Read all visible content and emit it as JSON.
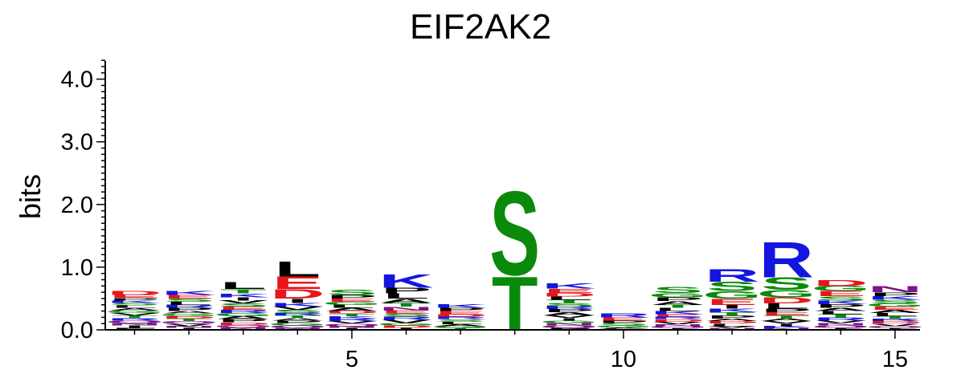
{
  "chart_data": {
    "type": "sequence-logo",
    "title": "EIF2AK2",
    "ylabel": "bits",
    "xlabel": "",
    "ylim": [
      0,
      4.3
    ],
    "y_ticks": [
      "0.0",
      "1.0",
      "2.0",
      "3.0",
      "4.0"
    ],
    "x_ticks": [
      "5",
      "10",
      "15"
    ],
    "colors": {
      "red": "#e8161c",
      "blue": "#1515e0",
      "green": "#0a8a0a",
      "black": "#000000",
      "purple": "#7a1582"
    },
    "positions": [
      {
        "pos": 1,
        "letters": [
          {
            "l": "D",
            "h": 0.07,
            "c": "red"
          },
          {
            "l": "E",
            "h": 0.05,
            "c": "red"
          },
          {
            "l": "P",
            "h": 0.04,
            "c": "black"
          },
          {
            "l": "K",
            "h": 0.04,
            "c": "blue"
          },
          {
            "l": "S",
            "h": 0.04,
            "c": "green"
          },
          {
            "l": "L",
            "h": 0.04,
            "c": "black"
          },
          {
            "l": "A",
            "h": 0.04,
            "c": "black"
          },
          {
            "l": "G",
            "h": 0.04,
            "c": "green"
          },
          {
            "l": "V",
            "h": 0.04,
            "c": "black"
          },
          {
            "l": "T",
            "h": 0.04,
            "c": "green"
          },
          {
            "l": "R",
            "h": 0.04,
            "c": "blue"
          },
          {
            "l": "Q",
            "h": 0.04,
            "c": "purple"
          },
          {
            "l": "N",
            "h": 0.04,
            "c": "purple"
          },
          {
            "l": "I",
            "h": 0.04,
            "c": "black"
          },
          {
            "l": "F",
            "h": 0.03,
            "c": "black"
          }
        ]
      },
      {
        "pos": 2,
        "letters": [
          {
            "l": "K",
            "h": 0.07,
            "c": "blue"
          },
          {
            "l": "E",
            "h": 0.06,
            "c": "red"
          },
          {
            "l": "S",
            "h": 0.05,
            "c": "green"
          },
          {
            "l": "L",
            "h": 0.05,
            "c": "black"
          },
          {
            "l": "R",
            "h": 0.05,
            "c": "blue"
          },
          {
            "l": "P",
            "h": 0.05,
            "c": "black"
          },
          {
            "l": "A",
            "h": 0.04,
            "c": "black"
          },
          {
            "l": "G",
            "h": 0.04,
            "c": "green"
          },
          {
            "l": "D",
            "h": 0.04,
            "c": "red"
          },
          {
            "l": "T",
            "h": 0.04,
            "c": "green"
          },
          {
            "l": "Q",
            "h": 0.04,
            "c": "purple"
          },
          {
            "l": "V",
            "h": 0.04,
            "c": "black"
          },
          {
            "l": "N",
            "h": 0.03,
            "c": "purple"
          },
          {
            "l": "I",
            "h": 0.03,
            "c": "black"
          }
        ]
      },
      {
        "pos": 3,
        "letters": [
          {
            "l": "L",
            "h": 0.11,
            "c": "black"
          },
          {
            "l": "T",
            "h": 0.07,
            "c": "green"
          },
          {
            "l": "K",
            "h": 0.06,
            "c": "blue"
          },
          {
            "l": "I",
            "h": 0.05,
            "c": "black"
          },
          {
            "l": "V",
            "h": 0.05,
            "c": "black"
          },
          {
            "l": "S",
            "h": 0.05,
            "c": "green"
          },
          {
            "l": "E",
            "h": 0.05,
            "c": "red"
          },
          {
            "l": "R",
            "h": 0.05,
            "c": "blue"
          },
          {
            "l": "G",
            "h": 0.05,
            "c": "green"
          },
          {
            "l": "A",
            "h": 0.05,
            "c": "black"
          },
          {
            "l": "P",
            "h": 0.05,
            "c": "black"
          },
          {
            "l": "D",
            "h": 0.04,
            "c": "red"
          },
          {
            "l": "Q",
            "h": 0.04,
            "c": "purple"
          },
          {
            "l": "N",
            "h": 0.04,
            "c": "purple"
          }
        ]
      },
      {
        "pos": 4,
        "letters": [
          {
            "l": "L",
            "h": 0.25,
            "c": "black"
          },
          {
            "l": "E",
            "h": 0.2,
            "c": "red"
          },
          {
            "l": "D",
            "h": 0.15,
            "c": "red"
          },
          {
            "l": "I",
            "h": 0.07,
            "c": "black"
          },
          {
            "l": "K",
            "h": 0.06,
            "c": "blue"
          },
          {
            "l": "V",
            "h": 0.05,
            "c": "black"
          },
          {
            "l": "S",
            "h": 0.05,
            "c": "green"
          },
          {
            "l": "R",
            "h": 0.04,
            "c": "blue"
          },
          {
            "l": "T",
            "h": 0.04,
            "c": "green"
          },
          {
            "l": "A",
            "h": 0.04,
            "c": "black"
          },
          {
            "l": "P",
            "h": 0.04,
            "c": "black"
          },
          {
            "l": "G",
            "h": 0.04,
            "c": "green"
          },
          {
            "l": "Q",
            "h": 0.04,
            "c": "purple"
          },
          {
            "l": "N",
            "h": 0.03,
            "c": "purple"
          }
        ]
      },
      {
        "pos": 5,
        "letters": [
          {
            "l": "S",
            "h": 0.08,
            "c": "green"
          },
          {
            "l": "P",
            "h": 0.06,
            "c": "black"
          },
          {
            "l": "E",
            "h": 0.05,
            "c": "red"
          },
          {
            "l": "G",
            "h": 0.05,
            "c": "green"
          },
          {
            "l": "L",
            "h": 0.05,
            "c": "black"
          },
          {
            "l": "A",
            "h": 0.05,
            "c": "black"
          },
          {
            "l": "D",
            "h": 0.04,
            "c": "red"
          },
          {
            "l": "T",
            "h": 0.04,
            "c": "green"
          },
          {
            "l": "K",
            "h": 0.04,
            "c": "blue"
          },
          {
            "l": "R",
            "h": 0.04,
            "c": "blue"
          },
          {
            "l": "V",
            "h": 0.04,
            "c": "black"
          },
          {
            "l": "Q",
            "h": 0.04,
            "c": "purple"
          },
          {
            "l": "N",
            "h": 0.03,
            "c": "purple"
          },
          {
            "l": "I",
            "h": 0.03,
            "c": "black"
          }
        ]
      },
      {
        "pos": 6,
        "letters": [
          {
            "l": "K",
            "h": 0.22,
            "c": "blue"
          },
          {
            "l": "P",
            "h": 0.09,
            "c": "black"
          },
          {
            "l": "L",
            "h": 0.08,
            "c": "black"
          },
          {
            "l": "A",
            "h": 0.07,
            "c": "black"
          },
          {
            "l": "T",
            "h": 0.06,
            "c": "green"
          },
          {
            "l": "N",
            "h": 0.06,
            "c": "purple"
          },
          {
            "l": "E",
            "h": 0.05,
            "c": "red"
          },
          {
            "l": "S",
            "h": 0.05,
            "c": "green"
          },
          {
            "l": "R",
            "h": 0.05,
            "c": "blue"
          },
          {
            "l": "V",
            "h": 0.05,
            "c": "black"
          },
          {
            "l": "G",
            "h": 0.04,
            "c": "green"
          },
          {
            "l": "D",
            "h": 0.04,
            "c": "red"
          },
          {
            "l": "I",
            "h": 0.03,
            "c": "black"
          }
        ]
      },
      {
        "pos": 7,
        "letters": [
          {
            "l": "K",
            "h": 0.06,
            "c": "blue"
          },
          {
            "l": "P",
            "h": 0.05,
            "c": "black"
          },
          {
            "l": "E",
            "h": 0.05,
            "c": "red"
          },
          {
            "l": "D",
            "h": 0.04,
            "c": "red"
          },
          {
            "l": "R",
            "h": 0.04,
            "c": "blue"
          },
          {
            "l": "S",
            "h": 0.04,
            "c": "green"
          },
          {
            "l": "L",
            "h": 0.04,
            "c": "black"
          },
          {
            "l": "A",
            "h": 0.03,
            "c": "black"
          },
          {
            "l": "G",
            "h": 0.03,
            "c": "green"
          },
          {
            "l": "T",
            "h": 0.03,
            "c": "green"
          }
        ]
      },
      {
        "pos": 8,
        "letters": [
          {
            "l": "S",
            "h": 1.37,
            "c": "green"
          },
          {
            "l": "T",
            "h": 0.88,
            "c": "green"
          }
        ]
      },
      {
        "pos": 9,
        "letters": [
          {
            "l": "K",
            "h": 0.08,
            "c": "blue"
          },
          {
            "l": "E",
            "h": 0.07,
            "c": "red"
          },
          {
            "l": "D",
            "h": 0.06,
            "c": "red"
          },
          {
            "l": "L",
            "h": 0.05,
            "c": "black"
          },
          {
            "l": "T",
            "h": 0.05,
            "c": "green"
          },
          {
            "l": "S",
            "h": 0.05,
            "c": "green"
          },
          {
            "l": "R",
            "h": 0.05,
            "c": "blue"
          },
          {
            "l": "P",
            "h": 0.05,
            "c": "black"
          },
          {
            "l": "A",
            "h": 0.05,
            "c": "black"
          },
          {
            "l": "V",
            "h": 0.04,
            "c": "black"
          },
          {
            "l": "I",
            "h": 0.04,
            "c": "black"
          },
          {
            "l": "G",
            "h": 0.04,
            "c": "green"
          },
          {
            "l": "N",
            "h": 0.04,
            "c": "purple"
          },
          {
            "l": "Q",
            "h": 0.04,
            "c": "purple"
          },
          {
            "l": "F",
            "h": 0.03,
            "c": "black"
          }
        ]
      },
      {
        "pos": 10,
        "letters": [
          {
            "l": "R",
            "h": 0.07,
            "c": "blue"
          },
          {
            "l": "E",
            "h": 0.05,
            "c": "red"
          },
          {
            "l": "P",
            "h": 0.04,
            "c": "black"
          },
          {
            "l": "S",
            "h": 0.04,
            "c": "green"
          },
          {
            "l": "G",
            "h": 0.03,
            "c": "green"
          },
          {
            "l": "A",
            "h": 0.02,
            "c": "black"
          },
          {
            "l": "L",
            "h": 0.02,
            "c": "black"
          }
        ]
      },
      {
        "pos": 11,
        "letters": [
          {
            "l": "S",
            "h": 0.1,
            "c": "green"
          },
          {
            "l": "G",
            "h": 0.07,
            "c": "green"
          },
          {
            "l": "P",
            "h": 0.06,
            "c": "black"
          },
          {
            "l": "A",
            "h": 0.06,
            "c": "black"
          },
          {
            "l": "T",
            "h": 0.05,
            "c": "green"
          },
          {
            "l": "L",
            "h": 0.05,
            "c": "black"
          },
          {
            "l": "K",
            "h": 0.05,
            "c": "blue"
          },
          {
            "l": "E",
            "h": 0.04,
            "c": "red"
          },
          {
            "l": "R",
            "h": 0.04,
            "c": "blue"
          },
          {
            "l": "D",
            "h": 0.04,
            "c": "red"
          },
          {
            "l": "V",
            "h": 0.04,
            "c": "black"
          },
          {
            "l": "N",
            "h": 0.03,
            "c": "purple"
          },
          {
            "l": "Q",
            "h": 0.03,
            "c": "purple"
          },
          {
            "l": "I",
            "h": 0.03,
            "c": "black"
          }
        ]
      },
      {
        "pos": 12,
        "letters": [
          {
            "l": "R",
            "h": 0.2,
            "c": "blue"
          },
          {
            "l": "S",
            "h": 0.15,
            "c": "green"
          },
          {
            "l": "G",
            "h": 0.12,
            "c": "green"
          },
          {
            "l": "E",
            "h": 0.1,
            "c": "red"
          },
          {
            "l": "I",
            "h": 0.06,
            "c": "black"
          },
          {
            "l": "K",
            "h": 0.06,
            "c": "blue"
          },
          {
            "l": "T",
            "h": 0.05,
            "c": "green"
          },
          {
            "l": "P",
            "h": 0.05,
            "c": "black"
          },
          {
            "l": "A",
            "h": 0.04,
            "c": "black"
          },
          {
            "l": "D",
            "h": 0.04,
            "c": "red"
          },
          {
            "l": "L",
            "h": 0.04,
            "c": "black"
          },
          {
            "l": "V",
            "h": 0.03,
            "c": "black"
          },
          {
            "l": "N",
            "h": 0.03,
            "c": "purple"
          }
        ]
      },
      {
        "pos": 13,
        "letters": [
          {
            "l": "R",
            "h": 0.58,
            "c": "blue"
          },
          {
            "l": "S",
            "h": 0.2,
            "c": "green"
          },
          {
            "l": "G",
            "h": 0.12,
            "c": "green"
          },
          {
            "l": "D",
            "h": 0.1,
            "c": "red"
          },
          {
            "l": "L",
            "h": 0.08,
            "c": "black"
          },
          {
            "l": "P",
            "h": 0.06,
            "c": "black"
          },
          {
            "l": "E",
            "h": 0.05,
            "c": "red"
          },
          {
            "l": "T",
            "h": 0.05,
            "c": "green"
          },
          {
            "l": "A",
            "h": 0.04,
            "c": "black"
          },
          {
            "l": "V",
            "h": 0.04,
            "c": "black"
          },
          {
            "l": "I",
            "h": 0.04,
            "c": "black"
          },
          {
            "l": "K",
            "h": 0.03,
            "c": "blue"
          },
          {
            "l": "N",
            "h": 0.03,
            "c": "purple"
          }
        ]
      },
      {
        "pos": 14,
        "letters": [
          {
            "l": "D",
            "h": 0.1,
            "c": "red"
          },
          {
            "l": "G",
            "h": 0.08,
            "c": "green"
          },
          {
            "l": "E",
            "h": 0.08,
            "c": "red"
          },
          {
            "l": "S",
            "h": 0.07,
            "c": "green"
          },
          {
            "l": "K",
            "h": 0.06,
            "c": "blue"
          },
          {
            "l": "P",
            "h": 0.06,
            "c": "black"
          },
          {
            "l": "A",
            "h": 0.05,
            "c": "black"
          },
          {
            "l": "L",
            "h": 0.05,
            "c": "black"
          },
          {
            "l": "T",
            "h": 0.05,
            "c": "green"
          },
          {
            "l": "R",
            "h": 0.05,
            "c": "blue"
          },
          {
            "l": "V",
            "h": 0.04,
            "c": "black"
          },
          {
            "l": "N",
            "h": 0.04,
            "c": "purple"
          },
          {
            "l": "Q",
            "h": 0.04,
            "c": "purple"
          },
          {
            "l": "I",
            "h": 0.03,
            "c": "black"
          }
        ]
      },
      {
        "pos": 15,
        "letters": [
          {
            "l": "N",
            "h": 0.1,
            "c": "purple"
          },
          {
            "l": "P",
            "h": 0.06,
            "c": "black"
          },
          {
            "l": "K",
            "h": 0.06,
            "c": "blue"
          },
          {
            "l": "S",
            "h": 0.06,
            "c": "green"
          },
          {
            "l": "G",
            "h": 0.05,
            "c": "green"
          },
          {
            "l": "E",
            "h": 0.05,
            "c": "red"
          },
          {
            "l": "A",
            "h": 0.05,
            "c": "black"
          },
          {
            "l": "L",
            "h": 0.05,
            "c": "black"
          },
          {
            "l": "T",
            "h": 0.04,
            "c": "green"
          },
          {
            "l": "R",
            "h": 0.04,
            "c": "blue"
          },
          {
            "l": "D",
            "h": 0.04,
            "c": "red"
          },
          {
            "l": "V",
            "h": 0.04,
            "c": "black"
          },
          {
            "l": "Q",
            "h": 0.03,
            "c": "purple"
          },
          {
            "l": "I",
            "h": 0.03,
            "c": "black"
          }
        ]
      }
    ]
  }
}
